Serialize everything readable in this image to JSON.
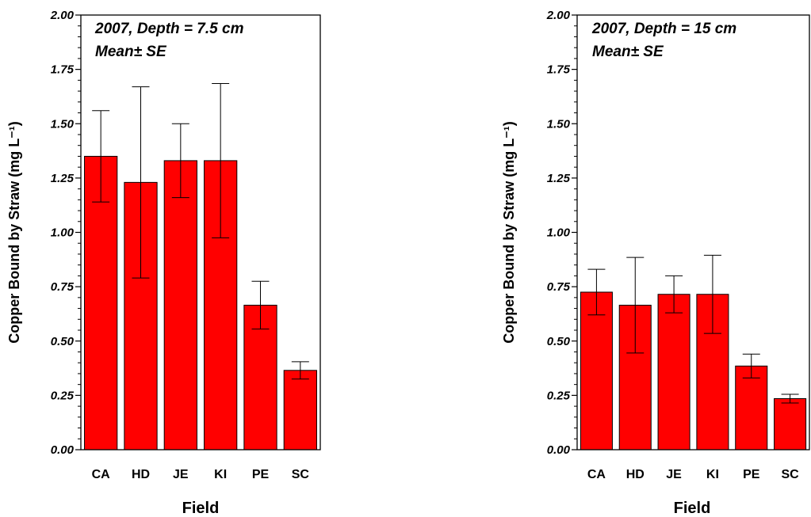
{
  "bar_color": "#ff0000",
  "chart_data": [
    {
      "type": "bar",
      "annotation_line1": "2007, Depth = 7.5 cm",
      "annotation_line2": "Mean± SE",
      "xlabel": "Field",
      "ylabel": "Copper Bound by Straw (mg L⁻¹)",
      "ylim": [
        0,
        2.0
      ],
      "yticks": [
        "0.00",
        "0.25",
        "0.50",
        "0.75",
        "1.00",
        "1.25",
        "1.50",
        "1.75",
        "2.00"
      ],
      "categories": [
        "CA",
        "HD",
        "JE",
        "KI",
        "PE",
        "SC"
      ],
      "values": [
        1.35,
        1.23,
        1.33,
        1.33,
        0.665,
        0.365
      ],
      "errors": [
        0.21,
        0.44,
        0.17,
        0.355,
        0.11,
        0.04
      ]
    },
    {
      "type": "bar",
      "annotation_line1": "2007, Depth = 15 cm",
      "annotation_line2": "Mean± SE",
      "xlabel": "Field",
      "ylabel": "Copper Bound by Straw (mg L⁻¹)",
      "ylim": [
        0,
        2.0
      ],
      "yticks": [
        "0.00",
        "0.25",
        "0.50",
        "0.75",
        "1.00",
        "1.25",
        "1.50",
        "1.75",
        "2.00"
      ],
      "categories": [
        "CA",
        "HD",
        "JE",
        "KI",
        "PE",
        "SC"
      ],
      "values": [
        0.725,
        0.665,
        0.715,
        0.715,
        0.385,
        0.235
      ],
      "errors": [
        0.105,
        0.22,
        0.085,
        0.18,
        0.055,
        0.02
      ]
    }
  ]
}
